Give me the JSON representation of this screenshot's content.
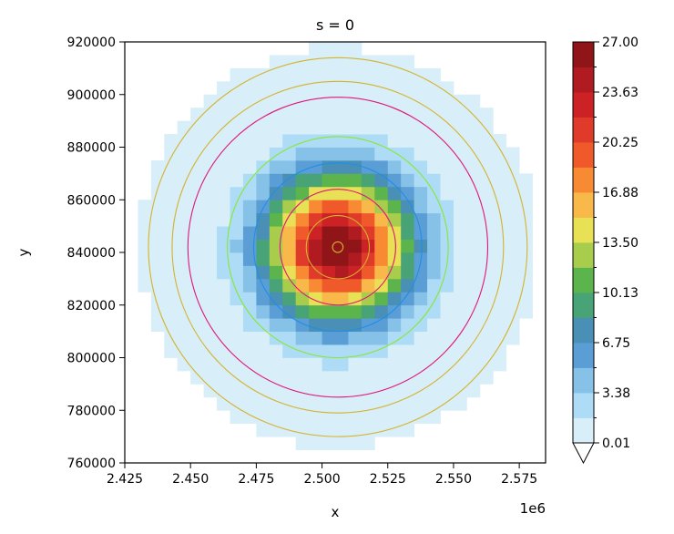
{
  "chart_data": {
    "type": "heatmap",
    "title": "s = 0",
    "xlabel": "x",
    "ylabel": "y",
    "x_offset_label": "1e6",
    "xlim": [
      2425000,
      2585000
    ],
    "ylim": [
      760000,
      920000
    ],
    "x_ticks": [
      {
        "value": 2425000,
        "label": "2.425"
      },
      {
        "value": 2450000,
        "label": "2.450"
      },
      {
        "value": 2475000,
        "label": "2.475"
      },
      {
        "value": 2500000,
        "label": "2.500"
      },
      {
        "value": 2525000,
        "label": "2.525"
      },
      {
        "value": 2550000,
        "label": "2.550"
      },
      {
        "value": 2575000,
        "label": "2.575"
      }
    ],
    "y_ticks": [
      {
        "value": 760000,
        "label": "760000"
      },
      {
        "value": 780000,
        "label": "780000"
      },
      {
        "value": 800000,
        "label": "800000"
      },
      {
        "value": 820000,
        "label": "820000"
      },
      {
        "value": 840000,
        "label": "840000"
      },
      {
        "value": 860000,
        "label": "860000"
      },
      {
        "value": 880000,
        "label": "880000"
      },
      {
        "value": 900000,
        "label": "900000"
      },
      {
        "value": 920000,
        "label": "920000"
      }
    ],
    "grid": false,
    "center": [
      2506000,
      842000
    ],
    "cell_size": 5000,
    "levels": [
      0.01,
      1.69,
      3.38,
      5.06,
      6.75,
      8.44,
      10.13,
      11.81,
      13.5,
      15.19,
      16.88,
      18.56,
      20.25,
      21.94,
      23.63,
      25.31,
      27.0
    ],
    "level_colors": [
      "#d8eef8",
      "#aedcf6",
      "#86c1e8",
      "#5b9ed6",
      "#4a8fb5",
      "#48a377",
      "#5bb54c",
      "#a8cc4c",
      "#e8e055",
      "#f8b94a",
      "#f88a34",
      "#f05a2a",
      "#e03a2a",
      "#cc2226",
      "#b01b22",
      "#901519"
    ],
    "colorbar_ticks": [
      "0.01",
      "3.38",
      "6.75",
      "10.13",
      "13.50",
      "16.88",
      "20.25",
      "23.63",
      "27.00"
    ],
    "colorbar_extend": "min",
    "rings": [
      {
        "radius": 2000,
        "color": "#d4b22c"
      },
      {
        "radius": 12000,
        "color": "#d4b22c"
      },
      {
        "radius": 22000,
        "color": "#e0157a"
      },
      {
        "radius": 32000,
        "color": "#1f8fe8"
      },
      {
        "radius": 42000,
        "color": "#86e830"
      },
      {
        "radius": 57000,
        "color": "#e0157a"
      },
      {
        "radius": 63000,
        "color": "#d4b22c"
      },
      {
        "radius": 72000,
        "color": "#d4b22c"
      }
    ]
  }
}
